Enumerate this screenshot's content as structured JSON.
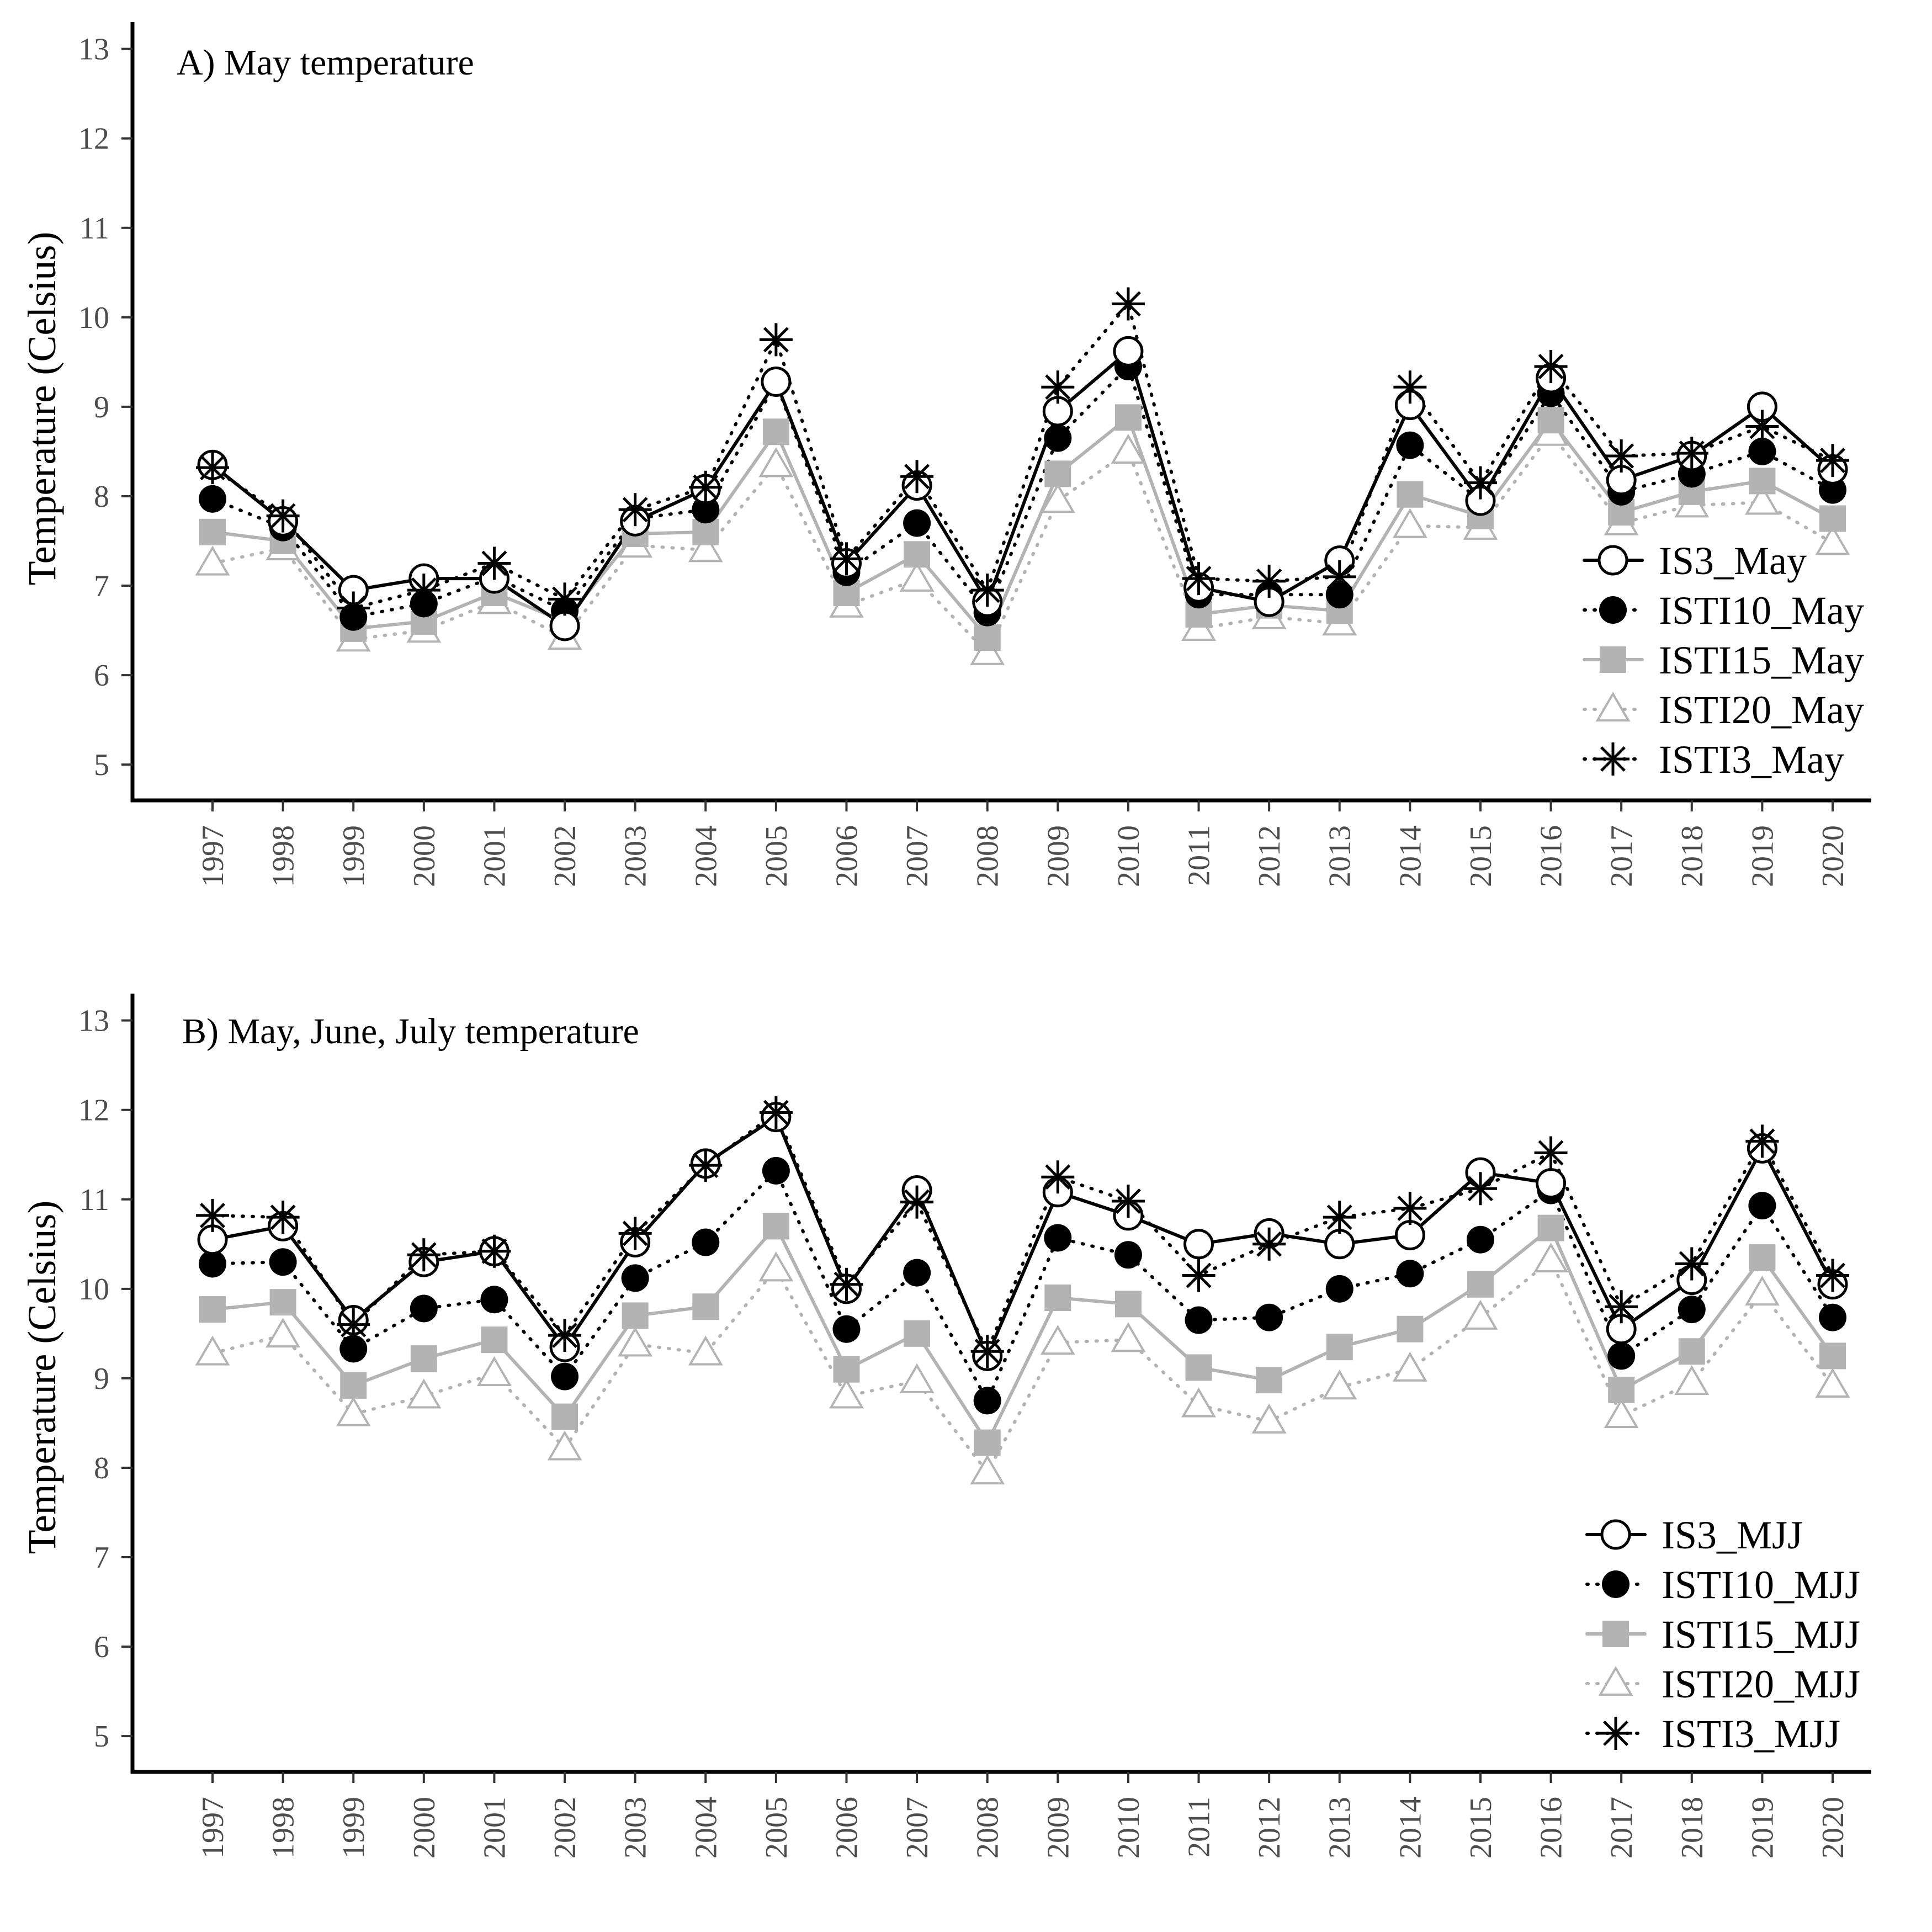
{
  "chart_data": [
    {
      "type": "line",
      "title": "A) May temperature",
      "xlabel": "",
      "ylabel": "Temperature (Celsius)",
      "ylim": [
        4.6,
        13.3
      ],
      "yticks": [
        "5",
        "6",
        "7",
        "8",
        "9",
        "10",
        "11",
        "12",
        "13"
      ],
      "categories": [
        "1997",
        "1998",
        "1999",
        "2000",
        "2001",
        "2002",
        "2003",
        "2004",
        "2005",
        "2006",
        "2007",
        "2008",
        "2009",
        "2010",
        "2011",
        "2012",
        "2013",
        "2014",
        "2015",
        "2016",
        "2017",
        "2018",
        "2019",
        "2020"
      ],
      "legend_position": "bottom-right",
      "series": [
        {
          "name": "IS3_May",
          "color": "#000000",
          "line": "solid",
          "marker": "open-circle",
          "values": [
            8.35,
            7.72,
            6.95,
            7.08,
            7.08,
            6.55,
            7.72,
            8.08,
            9.28,
            7.25,
            8.12,
            6.82,
            8.95,
            9.62,
            6.98,
            6.82,
            7.28,
            9.02,
            7.95,
            9.32,
            8.18,
            8.45,
            9.0,
            8.3
          ]
        },
        {
          "name": "ISTI10_May",
          "color": "#000000",
          "line": "dotted",
          "marker": "filled-circle",
          "values": [
            7.97,
            7.65,
            6.65,
            6.8,
            7.1,
            6.72,
            7.75,
            7.85,
            9.27,
            7.15,
            7.7,
            6.7,
            8.65,
            9.45,
            6.9,
            6.9,
            6.9,
            8.57,
            7.95,
            9.15,
            8.05,
            8.25,
            8.5,
            8.07
          ]
        },
        {
          "name": "ISTI15_May",
          "color": "#b3b3b3",
          "line": "solid",
          "marker": "square",
          "values": [
            7.6,
            7.5,
            6.52,
            6.6,
            6.92,
            6.6,
            7.58,
            7.6,
            8.72,
            6.92,
            7.35,
            6.42,
            8.25,
            8.88,
            6.68,
            6.78,
            6.72,
            8.02,
            7.78,
            8.85,
            7.82,
            8.05,
            8.17,
            7.75
          ]
        },
        {
          "name": "ISTI20_May",
          "color": "#b3b3b3",
          "line": "dotted",
          "marker": "open-triangle",
          "values": [
            7.25,
            7.42,
            6.4,
            6.5,
            6.82,
            6.42,
            7.45,
            7.4,
            8.35,
            6.78,
            7.07,
            6.25,
            7.95,
            8.5,
            6.52,
            6.65,
            6.58,
            7.67,
            7.65,
            8.7,
            7.7,
            7.9,
            7.93,
            7.48
          ]
        },
        {
          "name": "ISTI3_May",
          "color": "#000000",
          "line": "dotted",
          "marker": "asterisk",
          "values": [
            8.32,
            7.78,
            6.75,
            6.95,
            7.25,
            6.85,
            7.85,
            8.1,
            9.75,
            7.3,
            8.22,
            6.95,
            9.22,
            10.15,
            7.08,
            7.05,
            7.1,
            9.22,
            8.15,
            9.45,
            8.45,
            8.48,
            8.78,
            8.4
          ]
        }
      ]
    },
    {
      "type": "line",
      "title": "B) May, June, July temperature",
      "xlabel": "",
      "ylabel": "Temperature (Celsius)",
      "ylim": [
        4.6,
        13.3
      ],
      "yticks": [
        "5",
        "6",
        "7",
        "8",
        "9",
        "10",
        "11",
        "12",
        "13"
      ],
      "categories": [
        "1997",
        "1998",
        "1999",
        "2000",
        "2001",
        "2002",
        "2003",
        "2004",
        "2005",
        "2006",
        "2007",
        "2008",
        "2009",
        "2010",
        "2011",
        "2012",
        "2013",
        "2014",
        "2015",
        "2016",
        "2017",
        "2018",
        "2019",
        "2020"
      ],
      "legend_position": "bottom-right",
      "series": [
        {
          "name": "IS3_MJJ",
          "color": "#000000",
          "line": "solid",
          "marker": "open-circle",
          "values": [
            10.55,
            10.7,
            9.65,
            10.3,
            10.42,
            9.35,
            10.52,
            11.4,
            11.92,
            10.0,
            11.1,
            9.25,
            11.08,
            10.82,
            10.5,
            10.62,
            10.5,
            10.6,
            11.3,
            11.18,
            9.55,
            10.1,
            11.57,
            10.05
          ]
        },
        {
          "name": "ISTI10_MJJ",
          "color": "#000000",
          "line": "dotted",
          "marker": "filled-circle",
          "values": [
            10.28,
            10.3,
            9.33,
            9.78,
            9.88,
            9.02,
            10.12,
            10.52,
            11.32,
            9.55,
            10.18,
            8.75,
            10.57,
            10.38,
            9.65,
            9.68,
            10.0,
            10.17,
            10.55,
            11.1,
            9.25,
            9.77,
            10.93,
            9.68
          ]
        },
        {
          "name": "ISTI15_MJJ",
          "color": "#b3b3b3",
          "line": "solid",
          "marker": "square",
          "values": [
            9.77,
            9.85,
            8.92,
            9.22,
            9.43,
            8.57,
            9.7,
            9.8,
            10.7,
            9.1,
            9.5,
            8.28,
            9.9,
            9.83,
            9.12,
            8.98,
            9.35,
            9.55,
            10.05,
            10.68,
            8.87,
            9.3,
            10.35,
            9.25
          ]
        },
        {
          "name": "ISTI20_MJJ",
          "color": "#b3b3b3",
          "line": "dotted",
          "marker": "open-triangle",
          "values": [
            9.28,
            9.48,
            8.6,
            8.8,
            9.05,
            8.22,
            9.38,
            9.28,
            10.22,
            8.8,
            8.97,
            7.95,
            9.4,
            9.43,
            8.7,
            8.52,
            8.9,
            9.1,
            9.68,
            10.32,
            8.58,
            8.95,
            9.95,
            8.92
          ]
        },
        {
          "name": "ISTI3_MJJ",
          "color": "#000000",
          "line": "dotted",
          "marker": "asterisk",
          "values": [
            10.82,
            10.8,
            9.6,
            10.38,
            10.42,
            9.48,
            10.62,
            11.38,
            11.97,
            10.05,
            10.97,
            9.3,
            11.25,
            10.98,
            10.15,
            10.5,
            10.8,
            10.9,
            11.12,
            11.52,
            9.8,
            10.28,
            11.65,
            10.15
          ]
        }
      ]
    }
  ]
}
